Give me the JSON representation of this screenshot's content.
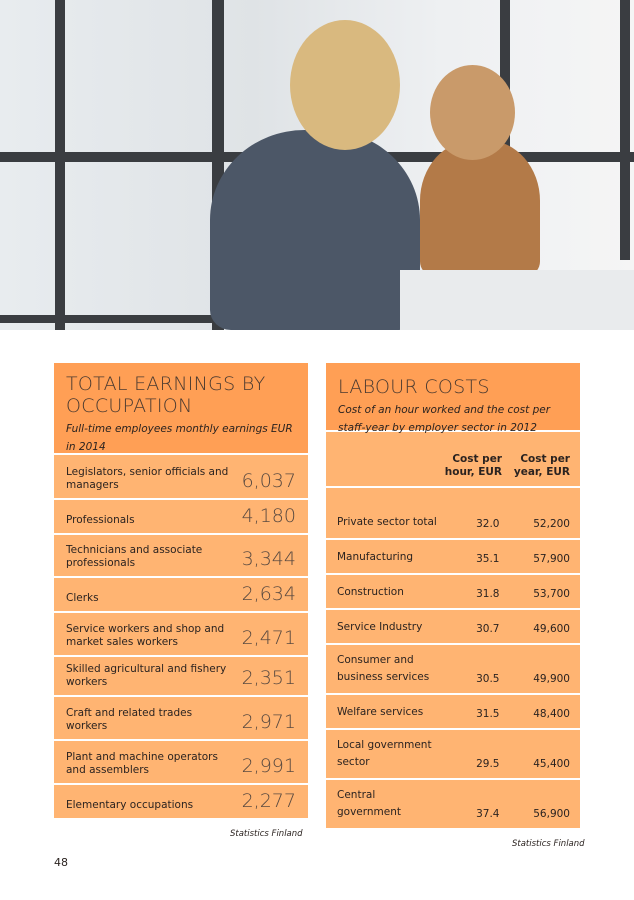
{
  "photo": {
    "description_icon": "office-meeting-photo"
  },
  "earnings": {
    "title": "TOTAL EARNINGS BY OCCUPATION",
    "subtitle": "Full-time employees monthly earnings EUR in 2014",
    "rows": [
      {
        "label": "Legislators, senior officials and managers",
        "value": "6,037"
      },
      {
        "label": "Professionals",
        "value": "4,180"
      },
      {
        "label": "Technicians and associate professionals",
        "value": "3,344"
      },
      {
        "label": "Clerks",
        "value": "2,634"
      },
      {
        "label": "Service workers and shop and market sales workers",
        "value": "2,471"
      },
      {
        "label": "Skilled agricultural and fishery workers",
        "value": "2,351"
      },
      {
        "label": "Craft and related trades workers",
        "value": "2,971"
      },
      {
        "label": "Plant and machine operators and assemblers",
        "value": "2,991"
      },
      {
        "label": "Elementary occupations",
        "value": "2,277"
      }
    ],
    "source": "Statistics Finland"
  },
  "labour": {
    "title": "LABOUR COSTS",
    "subtitle": "Cost of an hour worked and the cost per staff-year by employer sector in 2012",
    "col_hour": "Cost per hour, EUR",
    "col_year": "Cost per year, EUR",
    "rows": [
      {
        "label": "Private sector total",
        "hour": "32.0",
        "year": "52,200"
      },
      {
        "label": "Manufacturing",
        "hour": "35.1",
        "year": "57,900"
      },
      {
        "label": "Construction",
        "hour": "31.8",
        "year": "53,700"
      },
      {
        "label": "Service Industry",
        "hour": "30.7",
        "year": "49,600"
      },
      {
        "label": "Consumer and business services",
        "hour": "30.5",
        "year": "49,900"
      },
      {
        "label": "Welfare services",
        "hour": "31.5",
        "year": "48,400"
      },
      {
        "label": "Local government sector",
        "hour": "29.5",
        "year": "45,400"
      },
      {
        "label": "Central government",
        "hour": "37.4",
        "year": "56,900"
      }
    ],
    "source": "Statistics Finland"
  },
  "page_number": "48",
  "colors": {
    "header": "#ff9f55",
    "row": "#ffb472"
  }
}
